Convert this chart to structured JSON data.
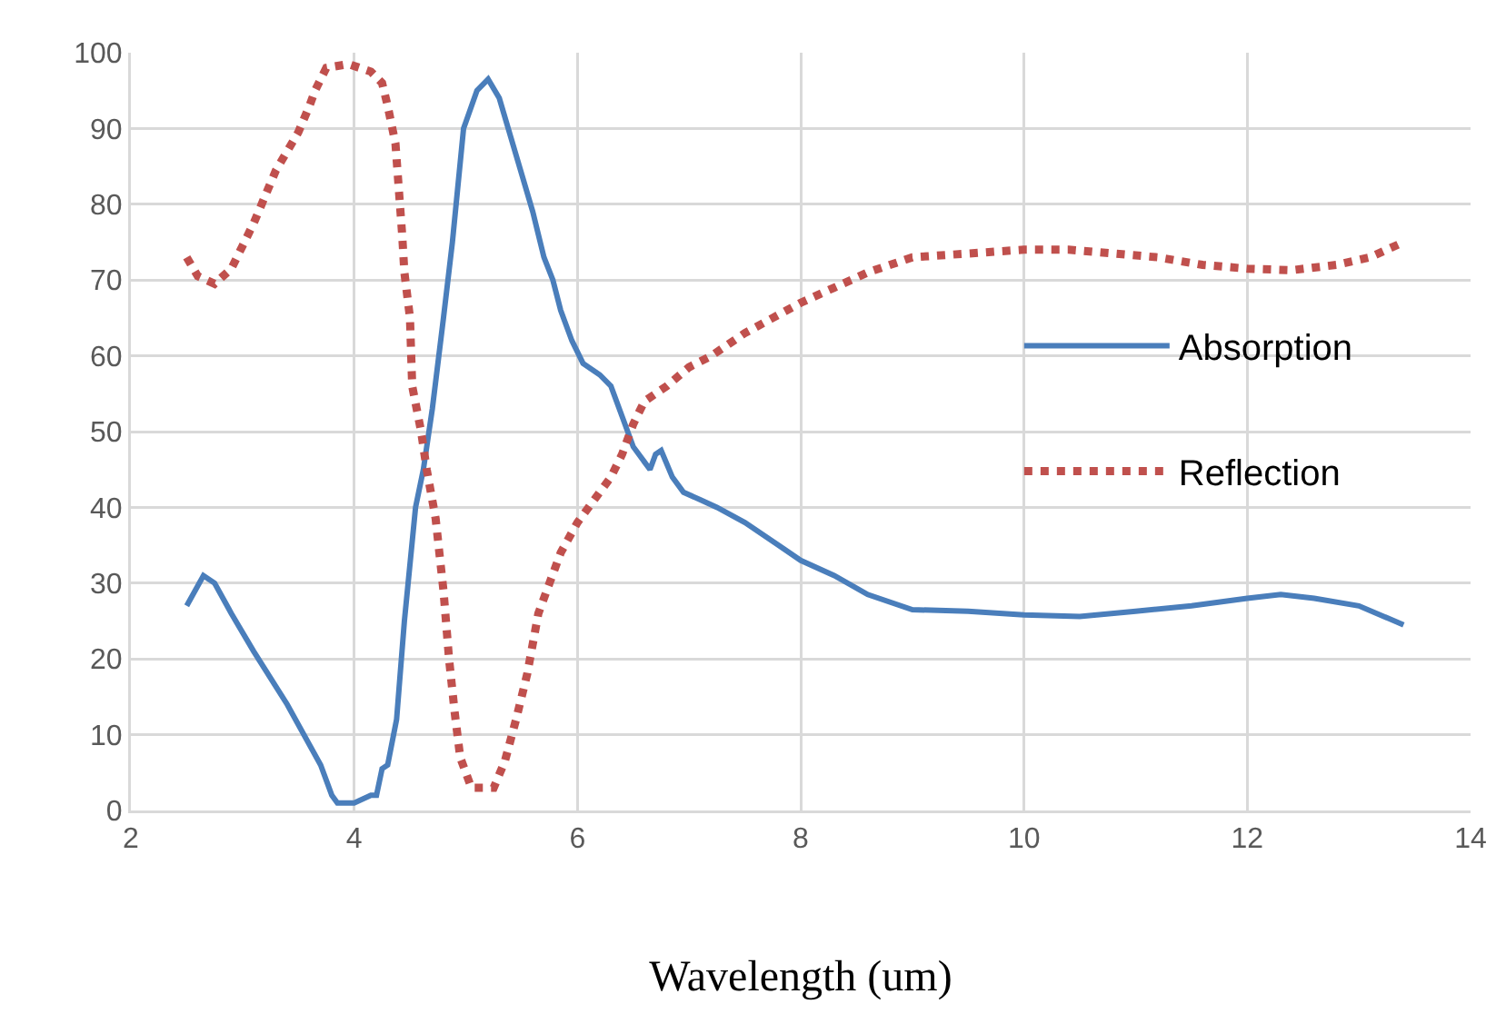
{
  "chart_data": {
    "type": "line",
    "xlabel": "Wavelength (um)",
    "xlim": [
      2,
      14
    ],
    "xticks": [
      2,
      4,
      6,
      8,
      10,
      12,
      14
    ],
    "ylim": [
      0,
      100
    ],
    "yticks": [
      0,
      10,
      20,
      30,
      40,
      50,
      60,
      70,
      80,
      90,
      100
    ],
    "grid": true,
    "legend": "right",
    "marker": "none",
    "series": [
      {
        "name": "Absorption",
        "color": "#4a7ebb",
        "line_style": "solid",
        "x": [
          2.5,
          2.65,
          2.75,
          2.9,
          3.1,
          3.4,
          3.7,
          3.8,
          3.85,
          4.0,
          4.15,
          4.2,
          4.25,
          4.3,
          4.38,
          4.45,
          4.55,
          4.62,
          4.7,
          4.8,
          4.88,
          4.98,
          5.1,
          5.2,
          5.3,
          5.38,
          5.5,
          5.6,
          5.7,
          5.78,
          5.85,
          5.95,
          6.05,
          6.2,
          6.3,
          6.4,
          6.5,
          6.6,
          6.65,
          6.7,
          6.75,
          6.85,
          6.95,
          7.1,
          7.25,
          7.5,
          7.8,
          8.0,
          8.3,
          8.6,
          9.0,
          9.5,
          10.0,
          10.5,
          11.0,
          11.5,
          12.0,
          12.3,
          12.6,
          13.0,
          13.4
        ],
        "values": [
          27,
          31,
          30,
          26,
          21,
          14,
          6,
          2,
          1,
          1,
          2,
          2,
          5.5,
          6,
          12,
          25,
          40,
          45,
          53,
          65,
          75,
          90,
          95,
          96.5,
          94,
          90,
          84,
          79,
          73,
          70,
          66,
          62,
          59,
          57.5,
          56,
          52,
          48,
          46,
          45,
          47,
          47.5,
          44,
          42,
          41,
          40,
          38,
          35,
          33,
          31,
          28.5,
          26.5,
          26.3,
          25.8,
          25.6,
          26.3,
          27,
          28,
          28.5,
          28,
          27,
          24.5
        ]
      },
      {
        "name": "Reflection",
        "color": "#c0504d",
        "line_style": "dotted",
        "x": [
          2.5,
          2.6,
          2.75,
          2.9,
          3.0,
          3.1,
          3.2,
          3.3,
          3.4,
          3.5,
          3.6,
          3.65,
          3.75,
          3.95,
          4.15,
          4.25,
          4.3,
          4.37,
          4.4,
          4.43,
          4.45,
          4.5,
          4.52,
          4.6,
          4.65,
          4.73,
          4.8,
          4.85,
          4.9,
          4.95,
          5.05,
          5.25,
          5.35,
          5.45,
          5.55,
          5.65,
          5.75,
          5.85,
          6.0,
          6.15,
          6.3,
          6.4,
          6.5,
          6.6,
          6.7,
          6.8,
          7.0,
          7.2,
          7.5,
          7.75,
          8.0,
          8.3,
          8.6,
          9.0,
          9.5,
          10.0,
          10.4,
          10.8,
          11.2,
          11.6,
          12.0,
          12.4,
          12.8,
          13.1,
          13.4
        ],
        "values": [
          73,
          70.5,
          69.5,
          71.5,
          74.5,
          77.5,
          81,
          84.5,
          87,
          89.5,
          93,
          95,
          98,
          98.5,
          97.5,
          96,
          93,
          88,
          82,
          76,
          71,
          65,
          56,
          50,
          45,
          38.5,
          29,
          20,
          13,
          7,
          3,
          3,
          6.5,
          12,
          18,
          26,
          30,
          34,
          38,
          41,
          44,
          47,
          51,
          54,
          55,
          56,
          58.5,
          60,
          63,
          65,
          67,
          69,
          71,
          73,
          73.5,
          74,
          74,
          73.5,
          73,
          72,
          71.5,
          71.3,
          72,
          73,
          75
        ]
      }
    ]
  }
}
